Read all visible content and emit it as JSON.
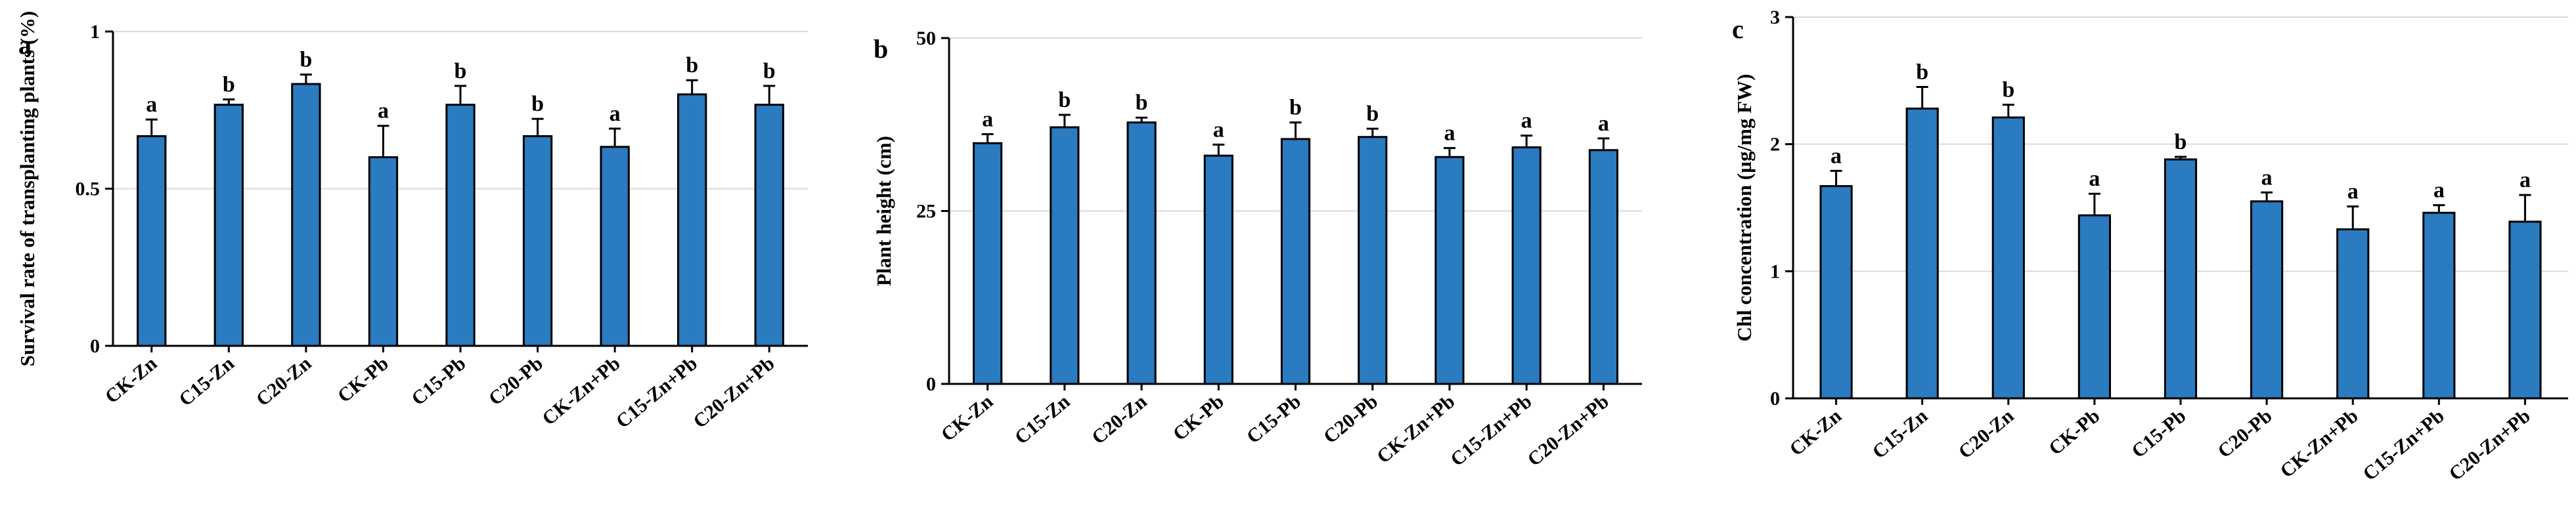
{
  "chart_data": [
    {
      "type": "bar",
      "panel": "a",
      "ylabel": "Survival rate of transplanting plants (%)",
      "ylim": [
        0,
        1
      ],
      "yticks": [
        {
          "value": 0,
          "label": "0"
        },
        {
          "value": 0.5,
          "label": "0.5"
        },
        {
          "value": 1,
          "label": "1"
        }
      ],
      "grid": true,
      "categories": [
        "CK-Zn",
        "C15-Zn",
        "C20-Zn",
        "CK-Pb",
        "C15-Pb",
        "C20-Pb",
        "CK-Zn+Pb",
        "C15-Zn+Pb",
        "C20-Zn+Pb"
      ],
      "values": [
        0.667,
        0.767,
        0.833,
        0.6,
        0.767,
        0.667,
        0.633,
        0.8,
        0.767
      ],
      "errors": [
        0.053,
        0.017,
        0.03,
        0.1,
        0.06,
        0.055,
        0.058,
        0.045,
        0.06
      ],
      "significance": [
        "a",
        "b",
        "b",
        "a",
        "b",
        "b",
        "a",
        "b",
        "b"
      ],
      "bar_color": "#2a7bc0"
    },
    {
      "type": "bar",
      "panel": "b",
      "ylabel": "Plant height (cm)",
      "ylim": [
        0,
        50
      ],
      "yticks": [
        {
          "value": 0,
          "label": "0"
        },
        {
          "value": 25,
          "label": "25"
        },
        {
          "value": 50,
          "label": "50"
        }
      ],
      "grid": true,
      "categories": [
        "CK-Zn",
        "C15-Zn",
        "C20-Zn",
        "CK-Pb",
        "C15-Pb",
        "C20-Pb",
        "CK-Zn+Pb",
        "C15-Zn+Pb",
        "C20-Zn+Pb"
      ],
      "values": [
        34.8,
        37.1,
        37.8,
        33.0,
        35.4,
        35.7,
        32.8,
        34.2,
        33.8
      ],
      "errors": [
        1.3,
        1.8,
        0.7,
        1.6,
        2.4,
        1.2,
        1.3,
        1.7,
        1.7
      ],
      "significance": [
        "a",
        "b",
        "b",
        "a",
        "b",
        "b",
        "a",
        "a",
        "a"
      ],
      "bar_color": "#2a7bc0"
    },
    {
      "type": "bar",
      "panel": "c",
      "ylabel": "Chl concentration (µg/mg FW)",
      "ylim": [
        0,
        3
      ],
      "yticks": [
        {
          "value": 0,
          "label": "0"
        },
        {
          "value": 1,
          "label": "1"
        },
        {
          "value": 2,
          "label": "2"
        },
        {
          "value": 3,
          "label": "3"
        }
      ],
      "grid": true,
      "categories": [
        "CK-Zn",
        "C15-Zn",
        "C20-Zn",
        "CK-Pb",
        "C15-Pb",
        "C20-Pb",
        "CK-Zn+Pb",
        "C15-Zn+Pb",
        "C20-Zn+Pb"
      ],
      "values": [
        1.67,
        2.28,
        2.21,
        1.44,
        1.88,
        1.55,
        1.33,
        1.46,
        1.39
      ],
      "errors": [
        0.12,
        0.17,
        0.1,
        0.17,
        0.02,
        0.07,
        0.18,
        0.06,
        0.21
      ],
      "significance": [
        "a",
        "b",
        "b",
        "a",
        "b",
        "a",
        "a",
        "a",
        "a"
      ],
      "bar_color": "#2a7bc0"
    }
  ]
}
